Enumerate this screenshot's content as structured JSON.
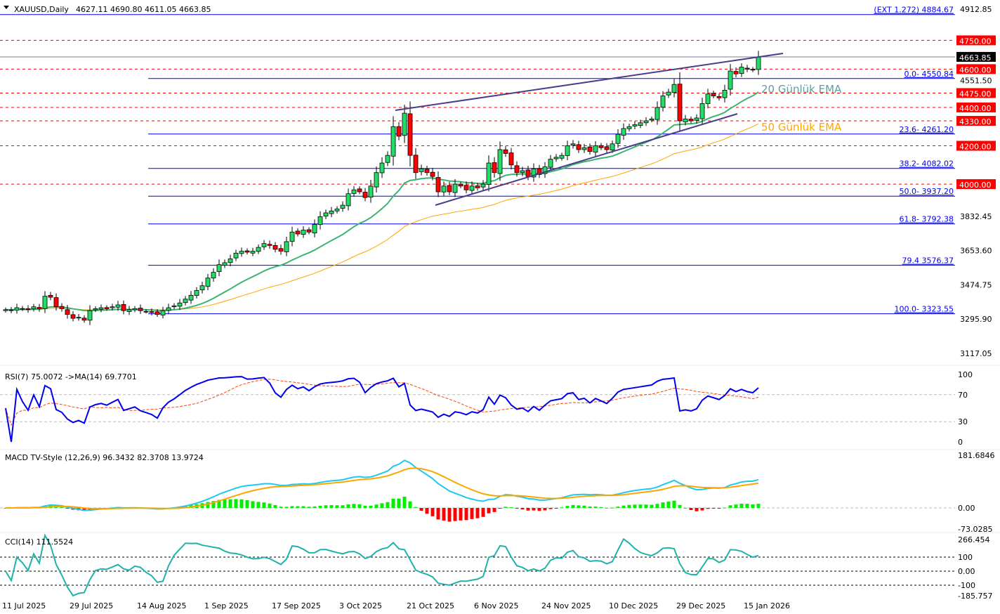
{
  "header": {
    "symbol": "XAUUSD,Daily",
    "ohlc": "4627.11 4690.80 4611.05 4663.85"
  },
  "colors": {
    "up": "#22dd66",
    "down": "#ff0000",
    "fib": "#0000ee",
    "level": "#ff0000",
    "trend": "#483d8b",
    "ema20": "#3cb371",
    "ema50": "#ffa500",
    "rsi": "#0000ee",
    "rsi_ma": "#ff4500",
    "macd": "#1ec8f0",
    "signal": "#ffa500",
    "cci": "#20b2aa"
  },
  "chart_data": [
    {
      "type": "candlestick",
      "title": "XAUUSD,Daily",
      "ylim": [
        3117.05,
        4912.85
      ],
      "price_axis_ticks": [
        "4912.85",
        "4551.50",
        "3832.45",
        "3653.60",
        "3474.75",
        "3295.90",
        "3117.05"
      ],
      "x_tick_labels": [
        "11 Jul 2025",
        "29 Jul 2025",
        "14 Aug 2025",
        "1 Sep 2025",
        "17 Sep 2025",
        "3 Oct 2025",
        "21 Oct 2025",
        "6 Nov 2025",
        "24 Nov 2025",
        "10 Dec 2025",
        "29 Dec 2025",
        "15 Jan 2026"
      ],
      "close": [
        3345,
        3340,
        3355,
        3350,
        3345,
        3360,
        3350,
        3415,
        3410,
        3360,
        3350,
        3320,
        3300,
        3305,
        3290,
        3340,
        3350,
        3355,
        3350,
        3360,
        3370,
        3340,
        3345,
        3350,
        3340,
        3335,
        3330,
        3320,
        3340,
        3355,
        3365,
        3380,
        3400,
        3420,
        3445,
        3470,
        3510,
        3540,
        3580,
        3590,
        3610,
        3640,
        3650,
        3645,
        3650,
        3670,
        3690,
        3680,
        3660,
        3650,
        3700,
        3750,
        3740,
        3760,
        3750,
        3790,
        3830,
        3850,
        3860,
        3870,
        3890,
        3950,
        3970,
        3960,
        3930,
        3990,
        4060,
        4110,
        4150,
        4300,
        4250,
        4370,
        4150,
        4060,
        4080,
        4060,
        4040,
        3960,
        3990,
        3960,
        4000,
        3990,
        3970,
        3990,
        3980,
        4000,
        4110,
        4060,
        4180,
        4160,
        4100,
        4060,
        4070,
        4040,
        4080,
        4050,
        4090,
        4130,
        4140,
        4150,
        4200,
        4210,
        4180,
        4190,
        4170,
        4200,
        4190,
        4180,
        4210,
        4260,
        4290,
        4300,
        4310,
        4320,
        4330,
        4340,
        4400,
        4460,
        4480,
        4520,
        4330,
        4340,
        4330,
        4345,
        4420,
        4470,
        4460,
        4450,
        4490,
        4590,
        4575,
        4610,
        4600,
        4595,
        4663.85
      ],
      "last_price": "4663.85",
      "current_price_label": "4663.85",
      "fib_levels": [
        {
          "label": "(EXT 1.272)  4884.67",
          "value": 4884.67,
          "full": true
        },
        {
          "label": "0.0- 4550.84",
          "value": 4550.84
        },
        {
          "label": "23.6- 4261.20",
          "value": 4261.2
        },
        {
          "label": "38.2- 4082.02",
          "value": 4082.02
        },
        {
          "label": "50.0- 3937.20",
          "value": 3937.2
        },
        {
          "label": "61.8- 3792.38",
          "value": 3792.38
        },
        {
          "label": "79.4 3576.37",
          "value": 3576.37
        },
        {
          "label": "100.0- 3323.55",
          "value": 3323.55
        }
      ],
      "levels": [
        {
          "label": "4750.00",
          "value": 4750
        },
        {
          "label": "4600.00",
          "value": 4600
        },
        {
          "label": "4475.00",
          "value": 4475
        },
        {
          "label": "4400.00",
          "value": 4400
        },
        {
          "label": "4330.00",
          "value": 4330
        },
        {
          "label": "4200.00",
          "value": 4200
        },
        {
          "label": "4000.00",
          "value": 4000
        }
      ],
      "annotations": {
        "ema20": "20 Günlük EMA",
        "ema50": "50 Günlük EMA"
      }
    },
    {
      "type": "line",
      "title": "RSI(7) 75.0072  ->MA(14) 69.7701",
      "ylim": [
        0,
        100
      ],
      "ticks": [
        "100",
        "70",
        "30",
        "0"
      ]
    },
    {
      "type": "bar+line",
      "title": "MACD TV-Style (12,26,9) 96.3432 82.3708 13.9724",
      "ylim": [
        -73.0285,
        181.6846
      ],
      "ticks": [
        "181.6846",
        "0.00",
        "-73.0285"
      ]
    },
    {
      "type": "line",
      "title": "CCI(14) 111.5524",
      "ylim": [
        -185.757,
        266.454
      ],
      "ticks": [
        "266.454",
        "100",
        "0.00",
        "-100",
        "-185.757"
      ]
    }
  ]
}
